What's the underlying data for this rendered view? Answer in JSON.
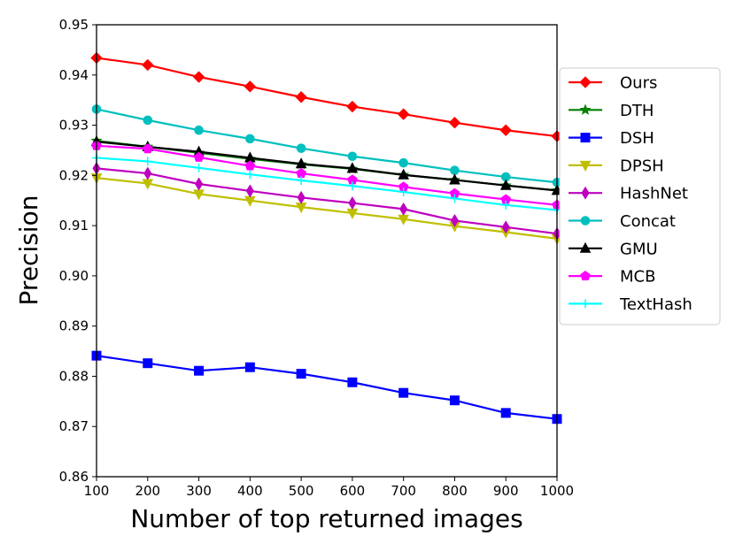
{
  "chart_data": {
    "type": "line",
    "xlabel": "Number of top returned images",
    "ylabel": "Precision",
    "xlim": [
      100,
      1000
    ],
    "ylim": [
      0.86,
      0.95
    ],
    "x": [
      100,
      200,
      300,
      400,
      500,
      600,
      700,
      800,
      900,
      1000
    ],
    "x_ticks": [
      "100",
      "200",
      "300",
      "400",
      "500",
      "600",
      "700",
      "800",
      "900",
      "1000"
    ],
    "y_ticks": [
      "0.86",
      "0.87",
      "0.88",
      "0.89",
      "0.90",
      "0.91",
      "0.92",
      "0.93",
      "0.94",
      "0.95"
    ],
    "y_tick_values": [
      0.86,
      0.87,
      0.88,
      0.89,
      0.9,
      0.91,
      0.92,
      0.93,
      0.94,
      0.95
    ],
    "grid": false,
    "legend_position": "right, outside plot",
    "series": [
      {
        "name": "Ours",
        "color": "#ff0000",
        "marker": "diamond",
        "values": [
          0.9434,
          0.942,
          0.9396,
          0.9377,
          0.9356,
          0.9337,
          0.9322,
          0.9305,
          0.929,
          0.9278
        ]
      },
      {
        "name": "DTH",
        "color": "#008000",
        "marker": "star",
        "values": [
          0.9269,
          0.9257,
          0.9245,
          0.9233,
          0.9222,
          0.9213,
          0.9201,
          0.9191,
          0.918,
          0.917
        ]
      },
      {
        "name": "DSH",
        "color": "#0000ff",
        "marker": "square",
        "values": [
          0.8841,
          0.8826,
          0.8811,
          0.8818,
          0.8805,
          0.8788,
          0.8767,
          0.8752,
          0.8727,
          0.8715
        ]
      },
      {
        "name": "DPSH",
        "color": "#bfbf00",
        "marker": "triangle-down",
        "values": [
          0.9195,
          0.9184,
          0.9163,
          0.915,
          0.9137,
          0.9125,
          0.9113,
          0.9099,
          0.9087,
          0.9074
        ]
      },
      {
        "name": "HashNet",
        "color": "#bf00bf",
        "marker": "thin-diamond",
        "values": [
          0.9214,
          0.9204,
          0.9183,
          0.9169,
          0.9156,
          0.9145,
          0.9133,
          0.911,
          0.9097,
          0.9084
        ]
      },
      {
        "name": "Concat",
        "color": "#00bfbf",
        "marker": "circle",
        "values": [
          0.9332,
          0.931,
          0.929,
          0.9273,
          0.9254,
          0.9238,
          0.9225,
          0.921,
          0.9197,
          0.9186
        ]
      },
      {
        "name": "GMU",
        "color": "#000000",
        "marker": "triangle-up",
        "values": [
          0.9267,
          0.9257,
          0.9247,
          0.9235,
          0.9223,
          0.9214,
          0.9201,
          0.9191,
          0.918,
          0.917
        ]
      },
      {
        "name": "MCB",
        "color": "#ff00ff",
        "marker": "pentagon",
        "values": [
          0.9259,
          0.9253,
          0.9236,
          0.9219,
          0.9204,
          0.9191,
          0.9177,
          0.9164,
          0.9152,
          0.9141
        ]
      },
      {
        "name": "TextHash",
        "color": "#00ffff",
        "marker": "plus",
        "values": [
          0.9235,
          0.9228,
          0.9215,
          0.9202,
          0.919,
          0.9179,
          0.9167,
          0.9154,
          0.9141,
          0.9131
        ]
      }
    ]
  }
}
